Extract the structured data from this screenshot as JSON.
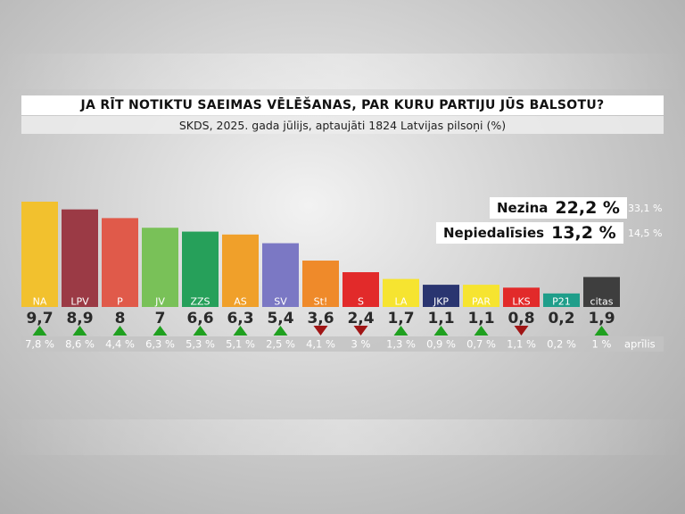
{
  "header": {
    "title": "JA RĪT NOTIKTU SAEIMAS VĒLĒŠANAS, PAR KURU PARTIJU JŪS BALSOTU?",
    "subtitle": "SKDS, 2025. gada jūlijs, aptaujāti 1824 Latvijas pilsoņi (%)"
  },
  "side_stats": [
    {
      "label": "Nezina",
      "value": "22,2 %",
      "previous": "33,1 %"
    },
    {
      "label": "Nepiedalīsies",
      "value": "13,2 %",
      "previous": "14,5 %"
    }
  ],
  "chart_data": {
    "type": "bar",
    "title": "JA RĪT NOTIKTU SAEIMAS VĒLĒŠANAS, PAR KURU PARTIJU JŪS BALSOTU?",
    "subtitle": "SKDS, 2025. gada jūlijs, aptaujāti 1824 Latvijas pilsoņi (%)",
    "categories": [
      "NA",
      "LPV",
      "P",
      "JV",
      "ZZS",
      "AS",
      "SV",
      "St!",
      "S",
      "LA",
      "JKP",
      "PAR",
      "LKS",
      "P21",
      "citas"
    ],
    "values": [
      9.7,
      8.9,
      8,
      7,
      6.6,
      6.3,
      5.4,
      3.6,
      2.4,
      1.7,
      1.1,
      1.1,
      0.8,
      0.2,
      1.9
    ],
    "value_labels": [
      "9,7",
      "8,9",
      "8",
      "7",
      "6,6",
      "6,3",
      "5,4",
      "3,6",
      "2,4",
      "1,7",
      "1,1",
      "1,1",
      "0,8",
      "0,2",
      "1,9"
    ],
    "colors": [
      "#f2c12e",
      "#9b3a45",
      "#e05a4a",
      "#79c158",
      "#26a05a",
      "#f0a02a",
      "#7b78c4",
      "#ef8a2a",
      "#e22a2a",
      "#f6e430",
      "#2a3570",
      "#f6e430",
      "#e22a2a",
      "#1f9e8a",
      "#3e3e3e"
    ],
    "label_text_colors": [
      "#fff",
      "#fff",
      "#fff",
      "#fff",
      "#fff",
      "#fff",
      "#fff",
      "#fff",
      "#fff",
      "#fff",
      "#fff",
      "#fff",
      "#fff",
      "#fff",
      "#fff"
    ],
    "trend": [
      "up",
      "up",
      "up",
      "up",
      "up",
      "up",
      "up",
      "down",
      "down",
      "up",
      "up",
      "up",
      "down",
      "none",
      "up"
    ],
    "previous_labels": [
      "7,8 %",
      "8,6 %",
      "4,4 %",
      "6,3 %",
      "5,3 %",
      "5,1 %",
      "2,5 %",
      "4,1 %",
      "3 %",
      "1,3 %",
      "0,9 %",
      "0,7 %",
      "1,1 %",
      "0,2 %",
      "1 %"
    ],
    "previous_period_label": "aprīlis",
    "up_color": "#1fa01f",
    "down_color": "#a01515",
    "ylim": [
      0,
      10
    ]
  }
}
